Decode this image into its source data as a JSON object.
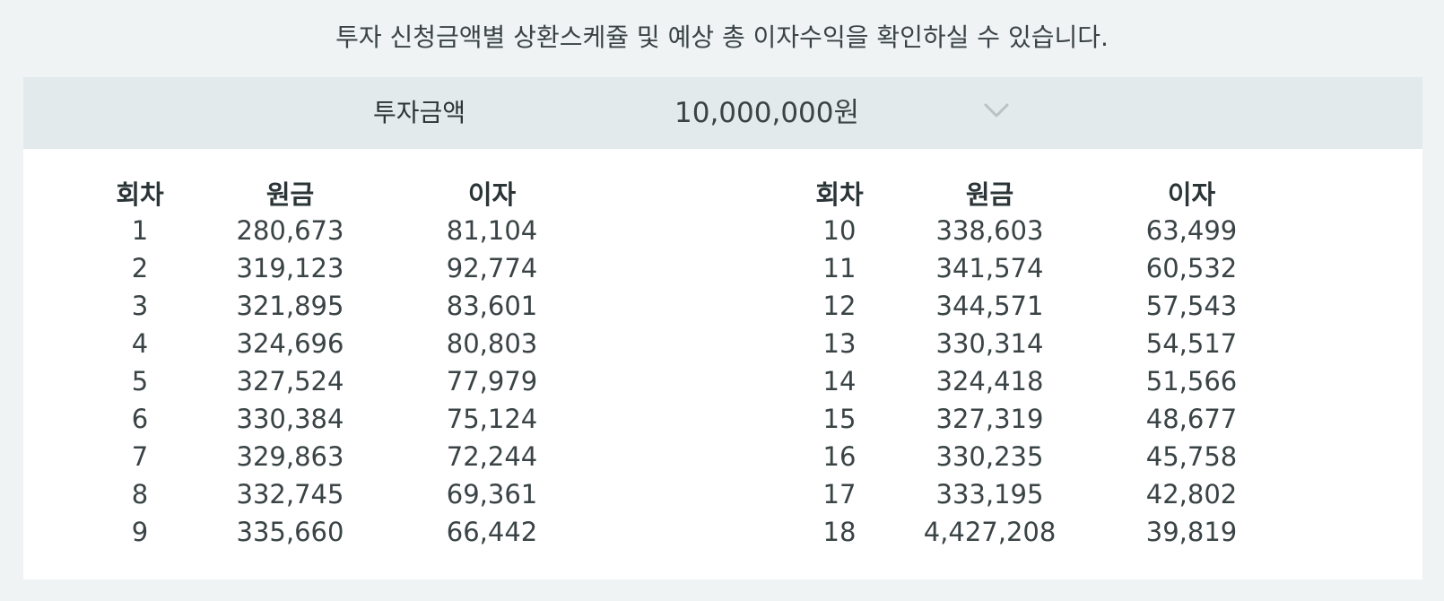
{
  "notice": "투자 신청금액별 상환스케쥴 및 예상 총 이자수익을 확인하실 수 있습니다.",
  "amount": {
    "label": "투자금액",
    "selected": "10,000,000원",
    "icon": "chevron-down-icon",
    "chevron_color": "#b9c3c5"
  },
  "colors": {
    "page_bg": "#eff3f4",
    "bar_bg": "#e3eaec",
    "panel_bg": "#ffffff",
    "text": "#2b3436"
  },
  "table": {
    "headers": [
      "회차",
      "원금",
      "이자"
    ],
    "left_rows": [
      [
        "1",
        "280,673",
        "81,104"
      ],
      [
        "2",
        "319,123",
        "92,774"
      ],
      [
        "3",
        "321,895",
        "83,601"
      ],
      [
        "4",
        "324,696",
        "80,803"
      ],
      [
        "5",
        "327,524",
        "77,979"
      ],
      [
        "6",
        "330,384",
        "75,124"
      ],
      [
        "7",
        "329,863",
        "72,244"
      ],
      [
        "8",
        "332,745",
        "69,361"
      ],
      [
        "9",
        "335,660",
        "66,442"
      ]
    ],
    "right_rows": [
      [
        "10",
        "338,603",
        "63,499"
      ],
      [
        "11",
        "341,574",
        "60,532"
      ],
      [
        "12",
        "344,571",
        "57,543"
      ],
      [
        "13",
        "330,314",
        "54,517"
      ],
      [
        "14",
        "324,418",
        "51,566"
      ],
      [
        "15",
        "327,319",
        "48,677"
      ],
      [
        "16",
        "330,235",
        "45,758"
      ],
      [
        "17",
        "333,195",
        "42,802"
      ],
      [
        "18",
        "4,427,208",
        "39,819"
      ]
    ]
  }
}
